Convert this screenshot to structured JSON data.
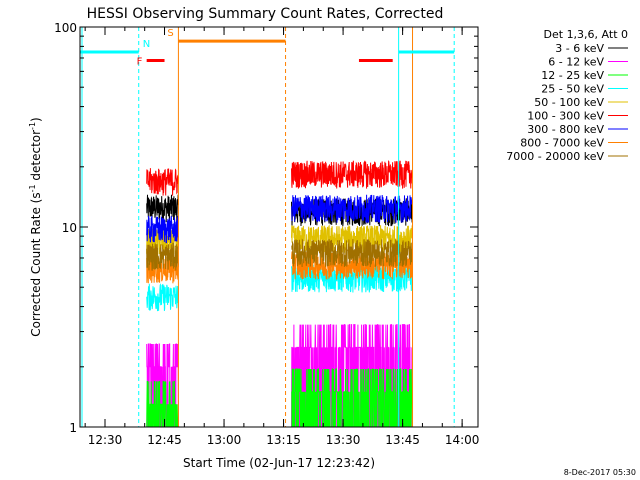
{
  "chart_data": {
    "type": "line",
    "title": "HESSI Observing Summary Count Rates, Corrected",
    "xlabel": "Start Time (02-Jun-17 12:23:42)",
    "ylabel_main": "Corrected Count Rate (s",
    "ylabel_sup1": "-1",
    "ylabel_mid": " detector",
    "ylabel_sup2": "-1",
    "ylabel_end": ")",
    "y_scale": "log",
    "ylim": [
      1,
      100
    ],
    "xlim": [
      "12:23:42",
      "14:04:00"
    ],
    "y_ticks": [
      {
        "value": 1,
        "label": "1"
      },
      {
        "value": 10,
        "label": "10"
      },
      {
        "value": 100,
        "label": "100"
      }
    ],
    "x_ticks": [
      {
        "time": "12:30",
        "label": "12:30"
      },
      {
        "time": "12:45",
        "label": "12:45"
      },
      {
        "time": "13:00",
        "label": "13:00"
      },
      {
        "time": "13:15",
        "label": "13:15"
      },
      {
        "time": "13:30",
        "label": "13:30"
      },
      {
        "time": "13:45",
        "label": "13:45"
      },
      {
        "time": "14:00",
        "label": "14:00"
      }
    ],
    "legend": {
      "position": "right",
      "header": "Det 1,3,6, Att 0"
    },
    "series": [
      {
        "name": "3 - 6 keV",
        "color": "#000000",
        "seg1": 12.5,
        "seg2": 12.0
      },
      {
        "name": "6 - 12 keV",
        "color": "#ff00ff",
        "seg1": 2.0,
        "seg2": 2.5
      },
      {
        "name": "12 - 25 keV",
        "color": "#00ff00",
        "seg1": 1.3,
        "seg2": 1.5
      },
      {
        "name": "25 - 50 keV",
        "color": "#00ffff",
        "seg1": 4.5,
        "seg2": 5.6
      },
      {
        "name": "50 - 100 keV",
        "color": "#e0c000",
        "seg1": 8.5,
        "seg2": 8.8
      },
      {
        "name": "100 - 300 keV",
        "color": "#ff0000",
        "seg1": 17.0,
        "seg2": 18.5
      },
      {
        "name": "300 - 800 keV",
        "color": "#0000ff",
        "seg1": 9.8,
        "seg2": 12.5
      },
      {
        "name": "800 - 7000 keV",
        "color": "#ff8000",
        "seg1": 6.2,
        "seg2": 6.5
      },
      {
        "name": "7000 - 20000 keV",
        "color": "#a07000",
        "seg1": 7.2,
        "seg2": 7.5
      }
    ],
    "data_segments": [
      {
        "start": "12:40:30",
        "end": "12:48:30"
      },
      {
        "start": "13:17:00",
        "end": "13:47:30"
      }
    ],
    "annotations": [
      {
        "label": "N",
        "color": "#00ffff",
        "start": "12:23:42",
        "end": "12:38:30",
        "level": 75,
        "line_at": "12:38:30",
        "line_style": "dashed"
      },
      {
        "label": "F",
        "color": "#ff0000",
        "start": "12:40:30",
        "end": "12:45:00",
        "level": 68,
        "line_at": null,
        "line_style": null
      },
      {
        "label": "S",
        "color": "#ff8000",
        "start": "12:48:30",
        "end": "13:15:30",
        "level": 85,
        "line_at": "13:15:30",
        "line_style": "dashed"
      },
      {
        "label": "",
        "color": "#ff8000",
        "start": null,
        "end": null,
        "level": null,
        "line_at": "12:48:30",
        "line_style": "solid"
      },
      {
        "label": "",
        "color": "#ff8000",
        "start": null,
        "end": null,
        "level": null,
        "line_at": "13:47:30",
        "line_style": "solid"
      },
      {
        "label": "",
        "color": "#ff0000",
        "start": "13:34:00",
        "end": "13:42:30",
        "level": 68,
        "line_at": null,
        "line_style": null
      },
      {
        "label": "",
        "color": "#00ffff",
        "start": "13:44:00",
        "end": "13:58:00",
        "level": 75,
        "line_at": "13:44:00",
        "line_style": "solid"
      },
      {
        "label": "",
        "color": "#00ffff",
        "start": null,
        "end": null,
        "level": null,
        "line_at": "13:58:00",
        "line_style": "dashed"
      }
    ],
    "grid": false
  },
  "footer": {
    "timestamp": "8-Dec-2017 05:30"
  }
}
